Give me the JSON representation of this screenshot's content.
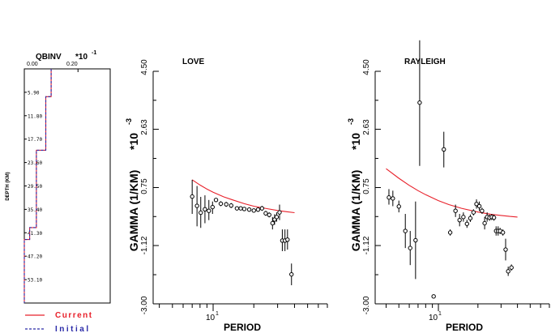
{
  "colors": {
    "current": "#e8202a",
    "initial": "#2a2aa8",
    "ink": "#000000"
  },
  "chart_data": [
    {
      "type": "line",
      "panel": "depth-profile",
      "title": "QBINV",
      "scale_label": "*10",
      "scale_exponent": "-1",
      "ylabel": "DEPTH (KM)",
      "xtick_labels": [
        "0.00",
        "0.20"
      ],
      "xticks": [
        0.0,
        0.2
      ],
      "xlim": [
        0.0,
        0.32
      ],
      "ytick_labels": [
        "5.90",
        "11.80",
        "17.70",
        "23.60",
        "29.50",
        "35.40",
        "41.30",
        "47.20",
        "53.10"
      ],
      "yticks": [
        5.9,
        11.8,
        17.7,
        23.6,
        29.5,
        35.4,
        41.3,
        47.2,
        53.1
      ],
      "ylim": [
        0,
        59
      ],
      "series": [
        {
          "name": "Current",
          "style": "solid",
          "x": [
            0.1,
            0.1,
            0.08,
            0.08,
            0.045,
            0.045,
            0.02,
            0.02,
            0.0,
            0.0
          ],
          "y": [
            0,
            7.0,
            7.0,
            20.5,
            20.5,
            40.0,
            40.0,
            43.0,
            43.0,
            59
          ]
        },
        {
          "name": "Initial",
          "style": "dashed",
          "x": [
            0.1,
            0.1,
            0.08,
            0.08,
            0.045,
            0.045,
            0.02,
            0.02,
            0.0,
            0.0
          ],
          "y": [
            0,
            7.0,
            7.0,
            20.5,
            20.5,
            40.0,
            40.0,
            43.0,
            43.0,
            59
          ]
        }
      ]
    },
    {
      "type": "scatter",
      "panel": "love",
      "title": "LOVE",
      "xlabel": "PERIOD",
      "ylabel": "GAMMA (1/KM)",
      "scale_label": "*10",
      "scale_exponent": "-3",
      "ytick_labels": [
        "-3.00",
        "-1.12",
        "0.75",
        "2.63",
        "4.50"
      ],
      "yticks": [
        -3.0,
        -1.12,
        0.75,
        2.63,
        4.5
      ],
      "ylim": [
        -3.0,
        4.5
      ],
      "xtick_label": "10",
      "xtick_exponent": "1",
      "xlog": true,
      "xlim": [
        3.6,
        70
      ],
      "curve": {
        "name": "Current",
        "x": [
          7.0,
          8,
          9,
          10,
          12,
          14,
          17,
          20,
          25,
          30,
          35,
          40
        ],
        "y": [
          1.0,
          0.83,
          0.7,
          0.6,
          0.45,
          0.35,
          0.23,
          0.15,
          0.07,
          0.01,
          -0.03,
          -0.06
        ]
      },
      "points": [
        {
          "x": 7.0,
          "y": 0.46,
          "lo": -0.1,
          "hi": 1.0
        },
        {
          "x": 7.6,
          "y": 0.16,
          "lo": -0.5,
          "hi": 0.8
        },
        {
          "x": 8.1,
          "y": -0.06,
          "lo": -0.55,
          "hi": 0.45
        },
        {
          "x": 8.7,
          "y": 0.05,
          "lo": -0.4,
          "hi": 0.5
        },
        {
          "x": 9.3,
          "y": 0.0,
          "lo": -0.3,
          "hi": 0.35
        },
        {
          "x": 9.9,
          "y": 0.12,
          "lo": -0.1,
          "hi": 0.3
        },
        {
          "x": 10.5,
          "y": 0.35,
          "lo": 0.3,
          "hi": 0.4
        },
        {
          "x": 11.4,
          "y": 0.23,
          "lo": 0.15,
          "hi": 0.31
        },
        {
          "x": 12.5,
          "y": 0.21,
          "lo": 0.13,
          "hi": 0.29
        },
        {
          "x": 13.6,
          "y": 0.17,
          "lo": 0.09,
          "hi": 0.25
        },
        {
          "x": 15.0,
          "y": 0.08,
          "lo": 0.02,
          "hi": 0.14
        },
        {
          "x": 16.0,
          "y": 0.08,
          "lo": 0.02,
          "hi": 0.14
        },
        {
          "x": 17.0,
          "y": 0.06,
          "lo": 0.0,
          "hi": 0.12
        },
        {
          "x": 18.5,
          "y": 0.04,
          "lo": -0.02,
          "hi": 0.1
        },
        {
          "x": 20.0,
          "y": 0.01,
          "lo": -0.05,
          "hi": 0.07
        },
        {
          "x": 21.5,
          "y": 0.04,
          "lo": -0.03,
          "hi": 0.11
        },
        {
          "x": 23.0,
          "y": 0.08,
          "lo": 0.0,
          "hi": 0.16
        },
        {
          "x": 24.5,
          "y": -0.08,
          "lo": -0.16,
          "hi": 0.0
        },
        {
          "x": 26.0,
          "y": -0.13,
          "lo": -0.21,
          "hi": -0.05
        },
        {
          "x": 27.5,
          "y": -0.4,
          "lo": -0.6,
          "hi": -0.2
        },
        {
          "x": 28.5,
          "y": -0.28,
          "lo": -0.45,
          "hi": -0.11
        },
        {
          "x": 29.5,
          "y": -0.2,
          "lo": -0.35,
          "hi": -0.05
        },
        {
          "x": 31.0,
          "y": -0.05,
          "lo": -0.3,
          "hi": 0.2
        },
        {
          "x": 32.5,
          "y": -0.96,
          "lo": -1.3,
          "hi": -0.6
        },
        {
          "x": 34.0,
          "y": -0.96,
          "lo": -1.3,
          "hi": -0.6
        },
        {
          "x": 35.5,
          "y": -0.93,
          "lo": -1.25,
          "hi": -0.6
        },
        {
          "x": 38.0,
          "y": -2.05,
          "lo": -2.4,
          "hi": -1.7
        }
      ]
    },
    {
      "type": "scatter",
      "panel": "rayleigh",
      "title": "RAYLEIGH",
      "xlabel": "PERIOD",
      "ylabel": "GAMMA (1/KM)",
      "scale_label": "*10",
      "scale_exponent": "-3",
      "ytick_labels": [
        "-3.00",
        "-1.12",
        "0.75",
        "2.63",
        "4.50"
      ],
      "yticks": [
        -3.0,
        -1.12,
        0.75,
        2.63,
        4.5
      ],
      "ylim": [
        -3.0,
        4.5
      ],
      "xtick_label": "10",
      "xtick_exponent": "1",
      "xlog": true,
      "xlim": [
        3.3,
        70
      ],
      "curve": {
        "name": "Current",
        "x": [
          4.0,
          5,
          6,
          7,
          8,
          10,
          12,
          15,
          20,
          25,
          30,
          35,
          40
        ],
        "y": [
          1.36,
          1.05,
          0.82,
          0.65,
          0.52,
          0.33,
          0.2,
          0.08,
          -0.04,
          -0.11,
          -0.15,
          -0.18,
          -0.2
        ]
      },
      "points": [
        {
          "x": 4.2,
          "y": 0.43,
          "lo": 0.2,
          "hi": 0.7
        },
        {
          "x": 4.5,
          "y": 0.4,
          "lo": 0.15,
          "hi": 0.65
        },
        {
          "x": 5.0,
          "y": 0.14,
          "lo": -0.05,
          "hi": 0.33
        },
        {
          "x": 5.6,
          "y": -0.65,
          "lo": -1.2,
          "hi": -0.1
        },
        {
          "x": 6.1,
          "y": -1.2,
          "lo": -1.75,
          "hi": -0.65
        },
        {
          "x": 6.7,
          "y": -0.95,
          "lo": -2.2,
          "hi": 0.3
        },
        {
          "x": 7.2,
          "y": 3.49,
          "lo": 1.45,
          "hi": 5.5
        },
        {
          "x": 9.2,
          "y": -2.76,
          "lo": -2.76,
          "hi": -2.76
        },
        {
          "x": 11.0,
          "y": 1.98,
          "lo": 1.4,
          "hi": 2.55
        },
        {
          "x": 12.3,
          "y": -0.7,
          "lo": -0.8,
          "hi": -0.6
        },
        {
          "x": 13.5,
          "y": 0.0,
          "lo": -0.2,
          "hi": 0.2
        },
        {
          "x": 14.5,
          "y": -0.3,
          "lo": -0.5,
          "hi": -0.1
        },
        {
          "x": 15.5,
          "y": -0.2,
          "lo": -0.35,
          "hi": -0.05
        },
        {
          "x": 16.5,
          "y": -0.42,
          "lo": -0.55,
          "hi": -0.29
        },
        {
          "x": 17.5,
          "y": -0.24,
          "lo": -0.36,
          "hi": -0.12
        },
        {
          "x": 18.5,
          "y": -0.05,
          "lo": -0.15,
          "hi": 0.05
        },
        {
          "x": 19.5,
          "y": 0.22,
          "lo": 0.07,
          "hi": 0.37
        },
        {
          "x": 20.5,
          "y": 0.15,
          "lo": 0.0,
          "hi": 0.3
        },
        {
          "x": 21.5,
          "y": 0.0,
          "lo": -0.1,
          "hi": 0.1
        },
        {
          "x": 22.5,
          "y": -0.4,
          "lo": -0.6,
          "hi": -0.2
        },
        {
          "x": 23.5,
          "y": -0.2,
          "lo": -0.35,
          "hi": -0.05
        },
        {
          "x": 24.5,
          "y": -0.22,
          "lo": -0.32,
          "hi": -0.12
        },
        {
          "x": 25.5,
          "y": -0.2,
          "lo": -0.3,
          "hi": -0.1
        },
        {
          "x": 26.5,
          "y": -0.22,
          "lo": -0.32,
          "hi": -0.12
        },
        {
          "x": 27.5,
          "y": -0.65,
          "lo": -0.8,
          "hi": -0.5
        },
        {
          "x": 28.5,
          "y": -0.65,
          "lo": -0.8,
          "hi": -0.5
        },
        {
          "x": 29.5,
          "y": -0.65,
          "lo": -0.75,
          "hi": -0.55
        },
        {
          "x": 31.0,
          "y": -0.7,
          "lo": -0.8,
          "hi": -0.6
        },
        {
          "x": 32.5,
          "y": -1.25,
          "lo": -1.6,
          "hi": -0.9
        },
        {
          "x": 34.0,
          "y": -1.95,
          "lo": -2.1,
          "hi": -1.8
        },
        {
          "x": 36.0,
          "y": -1.83,
          "lo": -1.93,
          "hi": -1.73
        }
      ]
    }
  ],
  "legend": [
    {
      "label": "Current",
      "style": "solid"
    },
    {
      "label": "Initial",
      "style": "dashed"
    }
  ]
}
